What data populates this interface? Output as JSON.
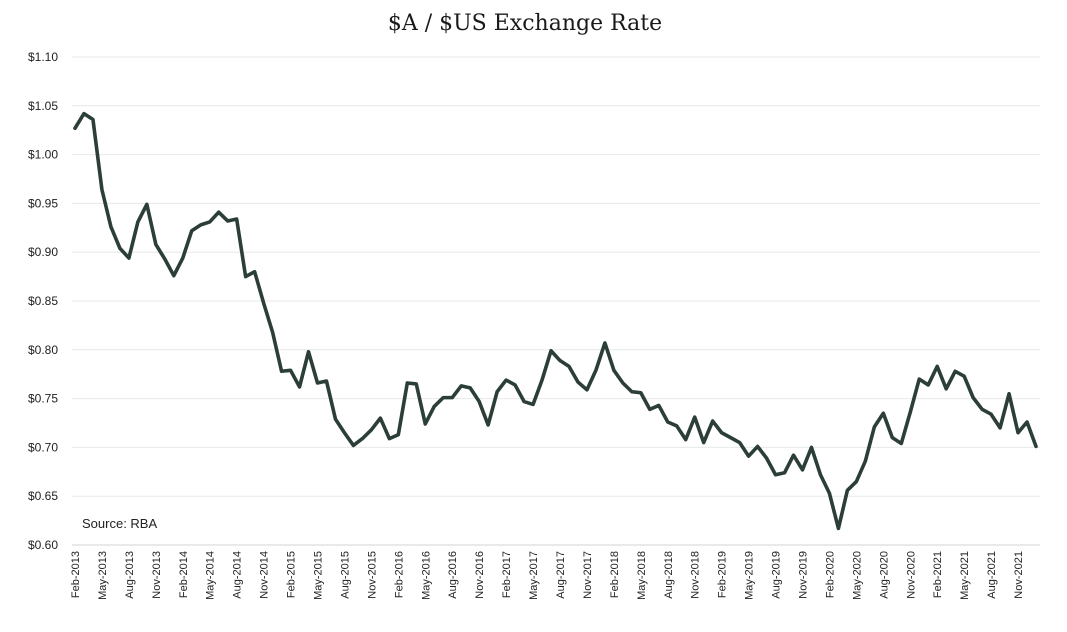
{
  "chart_data": {
    "type": "line",
    "title": "$A / $US Exchange Rate",
    "source_note": "Source: RBA",
    "xlabel": "",
    "ylabel": "",
    "ylim": [
      0.6,
      1.1
    ],
    "y_ticks": [
      0.6,
      0.65,
      0.7,
      0.75,
      0.8,
      0.85,
      0.9,
      0.95,
      1.0,
      1.05,
      1.1
    ],
    "y_tick_labels": [
      "$0.60",
      "$0.65",
      "$0.70",
      "$0.75",
      "$0.80",
      "$0.85",
      "$0.90",
      "$0.95",
      "$1.00",
      "$1.05",
      "$1.10"
    ],
    "x_tick_labels": [
      "Feb-2013",
      "May-2013",
      "Aug-2013",
      "Nov-2013",
      "Feb-2014",
      "May-2014",
      "Aug-2014",
      "Nov-2014",
      "Feb-2015",
      "May-2015",
      "Aug-2015",
      "Nov-2015",
      "Feb-2016",
      "May-2016",
      "Aug-2016",
      "Nov-2016",
      "Feb-2017",
      "May-2017",
      "Aug-2017",
      "Nov-2017",
      "Feb-2018",
      "May-2018",
      "Aug-2018",
      "Nov-2018",
      "Feb-2019",
      "May-2019",
      "Aug-2019",
      "Nov-2019",
      "Feb-2020",
      "May-2020",
      "Aug-2020",
      "Nov-2020",
      "Feb-2021",
      "May-2021",
      "Aug-2021",
      "Nov-2021"
    ],
    "grid": "horizontal",
    "line_color": "#2b3f37",
    "series": [
      {
        "x": [
          "Feb-2013",
          "Mar-2013",
          "Apr-2013",
          "May-2013",
          "Jun-2013",
          "Jul-2013",
          "Aug-2013",
          "Sep-2013",
          "Oct-2013",
          "Nov-2013",
          "Dec-2013",
          "Jan-2014",
          "Feb-2014",
          "Mar-2014",
          "Apr-2014",
          "May-2014",
          "Jun-2014",
          "Jul-2014",
          "Aug-2014",
          "Sep-2014",
          "Oct-2014",
          "Nov-2014",
          "Dec-2014",
          "Jan-2015",
          "Feb-2015",
          "Mar-2015",
          "Apr-2015",
          "May-2015",
          "Jun-2015",
          "Jul-2015",
          "Aug-2015",
          "Sep-2015",
          "Oct-2015",
          "Nov-2015",
          "Dec-2015",
          "Jan-2016",
          "Feb-2016",
          "Mar-2016",
          "Apr-2016",
          "May-2016",
          "Jun-2016",
          "Jul-2016",
          "Aug-2016",
          "Sep-2016",
          "Oct-2016",
          "Nov-2016",
          "Dec-2016",
          "Jan-2017",
          "Feb-2017",
          "Mar-2017",
          "Apr-2017",
          "May-2017",
          "Jun-2017",
          "Jul-2017",
          "Aug-2017",
          "Sep-2017",
          "Oct-2017",
          "Nov-2017",
          "Dec-2017",
          "Jan-2018",
          "Feb-2018",
          "Mar-2018",
          "Apr-2018",
          "May-2018",
          "Jun-2018",
          "Jul-2018",
          "Aug-2018",
          "Sep-2018",
          "Oct-2018",
          "Nov-2018",
          "Dec-2018",
          "Jan-2019",
          "Feb-2019",
          "Mar-2019",
          "Apr-2019",
          "May-2019",
          "Jun-2019",
          "Jul-2019",
          "Aug-2019",
          "Sep-2019",
          "Oct-2019",
          "Nov-2019",
          "Dec-2019",
          "Jan-2020",
          "Feb-2020",
          "Mar-2020",
          "Apr-2020",
          "May-2020",
          "Jun-2020",
          "Jul-2020",
          "Aug-2020",
          "Sep-2020",
          "Oct-2020",
          "Nov-2020",
          "Dec-2020",
          "Jan-2021",
          "Feb-2021",
          "Mar-2021",
          "Apr-2021",
          "May-2021",
          "Jun-2021",
          "Jul-2021",
          "Aug-2021",
          "Sep-2021",
          "Oct-2021",
          "Nov-2021",
          "Dec-2021",
          "Jan-2022"
        ],
        "values": [
          1.027,
          1.042,
          1.036,
          0.964,
          0.926,
          0.904,
          0.894,
          0.931,
          0.949,
          0.908,
          0.893,
          0.876,
          0.894,
          0.922,
          0.928,
          0.931,
          0.941,
          0.932,
          0.934,
          0.875,
          0.88,
          0.848,
          0.818,
          0.778,
          0.779,
          0.762,
          0.798,
          0.766,
          0.768,
          0.729,
          0.715,
          0.702,
          0.709,
          0.718,
          0.73,
          0.709,
          0.713,
          0.766,
          0.765,
          0.724,
          0.742,
          0.751,
          0.751,
          0.763,
          0.761,
          0.747,
          0.723,
          0.757,
          0.769,
          0.764,
          0.747,
          0.744,
          0.769,
          0.799,
          0.789,
          0.783,
          0.767,
          0.759,
          0.779,
          0.807,
          0.779,
          0.766,
          0.757,
          0.756,
          0.739,
          0.743,
          0.726,
          0.722,
          0.708,
          0.731,
          0.705,
          0.727,
          0.715,
          0.71,
          0.705,
          0.691,
          0.701,
          0.689,
          0.672,
          0.674,
          0.692,
          0.677,
          0.7,
          0.672,
          0.653,
          0.617,
          0.656,
          0.665,
          0.686,
          0.721,
          0.735,
          0.71,
          0.704,
          0.736,
          0.77,
          0.764,
          0.783,
          0.76,
          0.778,
          0.773,
          0.751,
          0.739,
          0.734,
          0.72,
          0.755,
          0.715,
          0.726,
          0.701
        ]
      }
    ]
  }
}
